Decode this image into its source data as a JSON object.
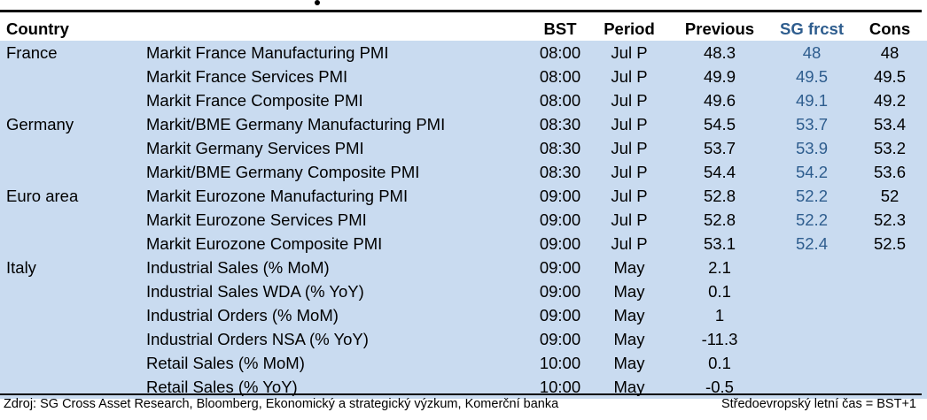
{
  "table": {
    "headers": {
      "country": "Country",
      "indicator": "",
      "bst": "BST",
      "period": "Period",
      "previous": "Previous",
      "sg_forecast": "SG frcst",
      "consensus": "Cons"
    },
    "rows": [
      {
        "country": "France",
        "indicator": "Markit France Manufacturing PMI",
        "bst": "08:00",
        "period": "Jul P",
        "previous": "48.3",
        "sg_forecast": "48",
        "consensus": "48"
      },
      {
        "country": "",
        "indicator": "Markit France Services PMI",
        "bst": "08:00",
        "period": "Jul P",
        "previous": "49.9",
        "sg_forecast": "49.5",
        "consensus": "49.5"
      },
      {
        "country": "",
        "indicator": "Markit France Composite PMI",
        "bst": "08:00",
        "period": "Jul P",
        "previous": "49.6",
        "sg_forecast": "49.1",
        "consensus": "49.2"
      },
      {
        "country": "Germany",
        "indicator": "Markit/BME Germany Manufacturing PMI",
        "bst": "08:30",
        "period": "Jul P",
        "previous": "54.5",
        "sg_forecast": "53.7",
        "consensus": "53.4"
      },
      {
        "country": "",
        "indicator": "Markit Germany Services PMI",
        "bst": "08:30",
        "period": "Jul P",
        "previous": "53.7",
        "sg_forecast": "53.9",
        "consensus": "53.2"
      },
      {
        "country": "",
        "indicator": "Markit/BME Germany Composite PMI",
        "bst": "08:30",
        "period": "Jul P",
        "previous": "54.4",
        "sg_forecast": "54.2",
        "consensus": "53.6"
      },
      {
        "country": "Euro area",
        "indicator": "Markit Eurozone Manufacturing PMI",
        "bst": "09:00",
        "period": "Jul P",
        "previous": "52.8",
        "sg_forecast": "52.2",
        "consensus": "52"
      },
      {
        "country": "",
        "indicator": "Markit Eurozone Services PMI",
        "bst": "09:00",
        "period": "Jul P",
        "previous": "52.8",
        "sg_forecast": "52.2",
        "consensus": "52.3"
      },
      {
        "country": "",
        "indicator": "Markit Eurozone Composite PMI",
        "bst": "09:00",
        "period": "Jul P",
        "previous": "53.1",
        "sg_forecast": "52.4",
        "consensus": "52.5"
      },
      {
        "country": "Italy",
        "indicator": "Industrial Sales (% MoM)",
        "bst": "09:00",
        "period": "May",
        "previous": "2.1",
        "sg_forecast": "",
        "consensus": ""
      },
      {
        "country": "",
        "indicator": "Industrial Sales WDA (% YoY)",
        "bst": "09:00",
        "period": "May",
        "previous": "0.1",
        "sg_forecast": "",
        "consensus": ""
      },
      {
        "country": "",
        "indicator": "Industrial Orders (% MoM)",
        "bst": "09:00",
        "period": "May",
        "previous": "1",
        "sg_forecast": "",
        "consensus": ""
      },
      {
        "country": "",
        "indicator": "Industrial Orders NSA (% YoY)",
        "bst": "09:00",
        "period": "May",
        "previous": "-11.3",
        "sg_forecast": "",
        "consensus": ""
      },
      {
        "country": "",
        "indicator": "Retail Sales (% MoM)",
        "bst": "10:00",
        "period": "May",
        "previous": "0.1",
        "sg_forecast": "",
        "consensus": ""
      },
      {
        "country": "",
        "indicator": "Retail Sales (% YoY)",
        "bst": "10:00",
        "period": "May",
        "previous": "-0.5",
        "sg_forecast": "",
        "consensus": ""
      }
    ]
  },
  "footer": {
    "source": "Zdroj: SG Cross Asset Research, Bloomberg, Ekonomický a strategický výzkum, Komerční banka",
    "timezone_note": "Středoevropský letní čas = BST+1"
  },
  "colors": {
    "row_background": "#c9dbf0",
    "sg_forecast_text": "#2e5d8e"
  }
}
